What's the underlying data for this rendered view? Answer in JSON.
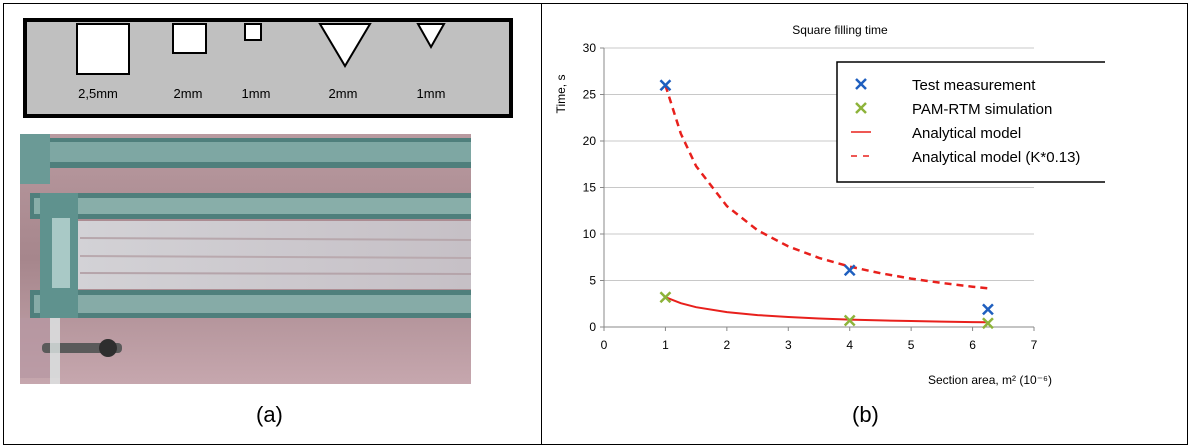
{
  "panel_a": {
    "caption": "(a)",
    "profile_labels": [
      "2,5mm",
      "2mm",
      "1mm",
      "2mm",
      "1mm"
    ],
    "colors": {
      "profile_bg": "#c0c0c0",
      "shape_fill": "#ffffff"
    }
  },
  "panel_b": {
    "caption": "(b)"
  },
  "chart_data": {
    "type": "scatter",
    "title": "Square filling time",
    "xlabel": "Section area, m² (10⁻⁶)",
    "ylabel": "Time, s",
    "xlim": [
      0,
      7
    ],
    "ylim": [
      0,
      30
    ],
    "xticks": [
      "0",
      "1",
      "2",
      "3",
      "4",
      "5",
      "6",
      "7"
    ],
    "yticks": [
      "0",
      "5",
      "10",
      "15",
      "20",
      "25",
      "30"
    ],
    "grid": "horizontal",
    "legend_position": "top-right",
    "series": [
      {
        "name": "Test measurement",
        "kind": "marker",
        "marker": "x",
        "color": "#1f5fbf",
        "x": [
          1,
          4,
          6.25
        ],
        "y": [
          26,
          6.1,
          1.9
        ]
      },
      {
        "name": "PAM-RTM simulation",
        "kind": "marker",
        "marker": "x",
        "color": "#8db33a",
        "x": [
          1,
          4,
          6.25
        ],
        "y": [
          3.2,
          0.7,
          0.4
        ]
      },
      {
        "name": "Analytical model",
        "kind": "line",
        "dash": "solid",
        "color": "#e8201c",
        "x": [
          1,
          1.25,
          1.5,
          2,
          2.5,
          3,
          3.5,
          4,
          4.5,
          5,
          5.5,
          6,
          6.25
        ],
        "y": [
          3.2,
          2.56,
          2.13,
          1.6,
          1.28,
          1.07,
          0.91,
          0.8,
          0.71,
          0.64,
          0.58,
          0.53,
          0.51
        ]
      },
      {
        "name": "Analytical model (K*0.13)",
        "kind": "line",
        "dash": "dashed",
        "color": "#e8201c",
        "x": [
          1,
          1.25,
          1.5,
          2,
          2.5,
          3,
          3.5,
          4,
          4.5,
          5,
          5.5,
          6,
          6.25
        ],
        "y": [
          26,
          20.8,
          17.3,
          13,
          10.4,
          8.67,
          7.43,
          6.5,
          5.78,
          5.2,
          4.73,
          4.33,
          4.16
        ]
      }
    ]
  }
}
